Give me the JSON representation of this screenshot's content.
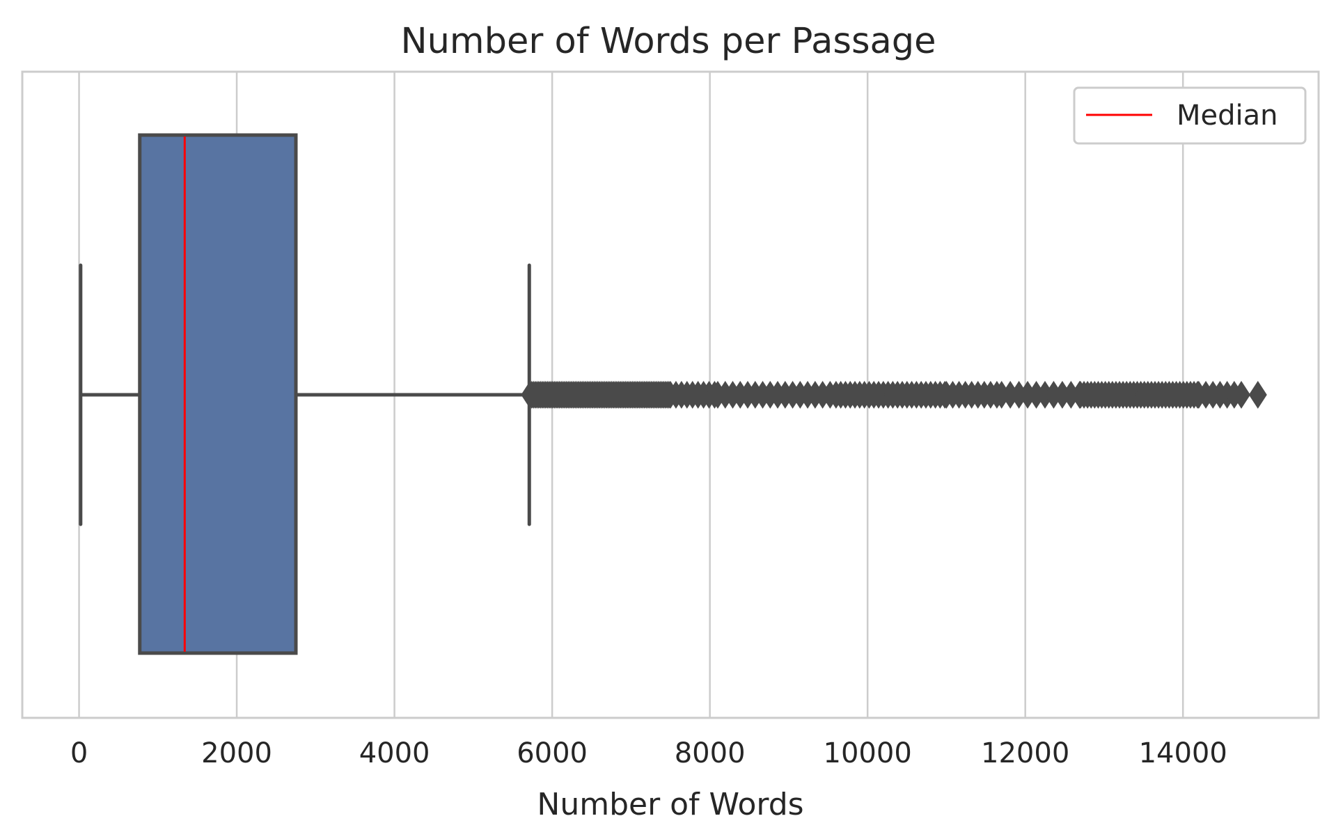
{
  "chart_data": {
    "type": "box",
    "title": "Number of Words per Passage",
    "xlabel": "Number of Words",
    "ylabel": "",
    "xlim": [
      -720,
      15720
    ],
    "xticks": [
      0,
      2000,
      4000,
      6000,
      8000,
      10000,
      12000,
      14000
    ],
    "grid": true,
    "orientation": "horizontal",
    "box": {
      "whisker_low": 20,
      "q1": 770,
      "median": 1340,
      "q3": 2750,
      "whisker_high": 5710,
      "fill_color": "#5874a2",
      "edge_color": "#4a4a4a"
    },
    "median_color": "#ff0000",
    "outlier_marker": "diamond",
    "outlier_color": "#4a4a4a",
    "outlier_segments": [
      {
        "from": 5720,
        "to": 7500,
        "step": 22
      },
      {
        "from": 7500,
        "to": 8100,
        "step": 70
      },
      {
        "from": 8100,
        "to": 9600,
        "step": 95
      },
      {
        "from": 9600,
        "to": 11000,
        "step": 60
      },
      {
        "from": 11000,
        "to": 11700,
        "step": 80
      },
      {
        "from": 11700,
        "to": 12700,
        "step": 110
      },
      {
        "from": 12700,
        "to": 14200,
        "step": 45
      },
      {
        "from": 14200,
        "to": 14800,
        "step": 90
      }
    ],
    "outliers_extra": [
      14950
    ],
    "legend": {
      "position": "top-right",
      "entries": [
        {
          "label": "Median",
          "color": "#ff0000",
          "marker": "line"
        }
      ]
    }
  }
}
